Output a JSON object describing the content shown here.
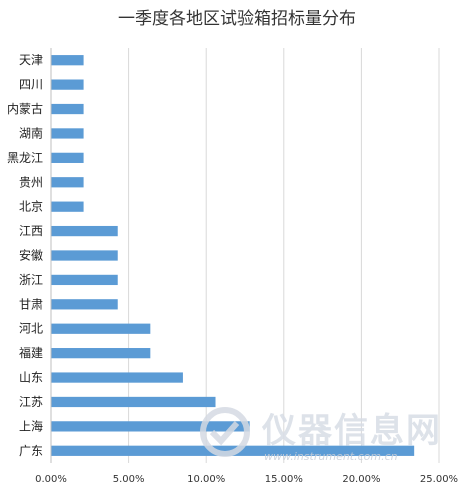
{
  "chart_data": {
    "type": "bar",
    "orientation": "horizontal",
    "title": "一季度各地区试验箱招标量分布",
    "categories": [
      "天津",
      "四川",
      "内蒙古",
      "湖南",
      "黑龙江",
      "贵州",
      "北京",
      "江西",
      "安徽",
      "浙江",
      "甘肃",
      "河北",
      "福建",
      "山东",
      "江苏",
      "上海",
      "广东"
    ],
    "values": [
      2.1,
      2.1,
      2.1,
      2.1,
      2.1,
      2.1,
      2.1,
      4.3,
      4.3,
      4.3,
      4.3,
      6.4,
      6.4,
      8.5,
      10.6,
      12.8,
      23.4
    ],
    "xlim": [
      0,
      25
    ],
    "x_ticks": [
      "0.00%",
      "5.00%",
      "10.00%",
      "15.00%",
      "20.00%",
      "25.00%"
    ],
    "x_tick_values": [
      0,
      5,
      10,
      15,
      20,
      25
    ],
    "grid": true,
    "legend": "none",
    "bar_color": "#5b9bd5"
  },
  "watermark": {
    "text": "仪器信息网",
    "url": "www.instrument.com.cn"
  }
}
